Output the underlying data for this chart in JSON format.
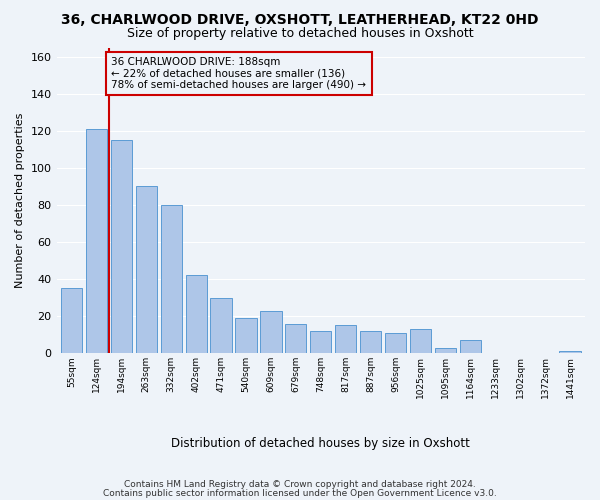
{
  "title": "36, CHARLWOOD DRIVE, OXSHOTT, LEATHERHEAD, KT22 0HD",
  "subtitle": "Size of property relative to detached houses in Oxshott",
  "xlabel": "Distribution of detached houses by size in Oxshott",
  "ylabel": "Number of detached properties",
  "categories": [
    "55sqm",
    "124sqm",
    "194sqm",
    "263sqm",
    "332sqm",
    "402sqm",
    "471sqm",
    "540sqm",
    "609sqm",
    "679sqm",
    "748sqm",
    "817sqm",
    "887sqm",
    "956sqm",
    "1025sqm",
    "1095sqm",
    "1164sqm",
    "1233sqm",
    "1302sqm",
    "1372sqm",
    "1441sqm"
  ],
  "bar_heights": [
    35,
    121,
    115,
    90,
    80,
    42,
    30,
    19,
    23,
    16,
    12,
    15,
    12,
    11,
    13,
    3,
    7,
    0,
    0,
    0,
    1
  ],
  "bar_color": "#aec6e8",
  "bar_edge_color": "#5b9bd5",
  "vline_color": "#cc0000",
  "annotation_line1": "36 CHARLWOOD DRIVE: 188sqm",
  "annotation_line2": "← 22% of detached houses are smaller (136)",
  "annotation_line3": "78% of semi-detached houses are larger (490) →",
  "ylim": [
    0,
    165
  ],
  "yticks": [
    0,
    20,
    40,
    60,
    80,
    100,
    120,
    140,
    160
  ],
  "footer1": "Contains HM Land Registry data © Crown copyright and database right 2024.",
  "footer2": "Contains public sector information licensed under the Open Government Licence v3.0.",
  "bg_color": "#eef3f9",
  "grid_color": "#ffffff"
}
